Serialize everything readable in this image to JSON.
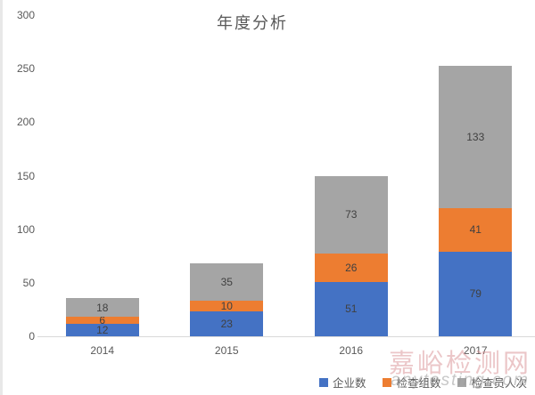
{
  "chart_data": {
    "type": "bar",
    "stacked": true,
    "title": "年度分析",
    "categories": [
      "2014",
      "2015",
      "2016",
      "2017"
    ],
    "series": [
      {
        "name": "企业数",
        "color": "#4472C4",
        "values": [
          12,
          23,
          51,
          79
        ]
      },
      {
        "name": "检查组数",
        "color": "#ED7D31",
        "values": [
          6,
          10,
          26,
          41
        ]
      },
      {
        "name": "检查员人次",
        "color": "#A5A5A5",
        "values": [
          18,
          35,
          73,
          133
        ]
      }
    ],
    "xlabel": "",
    "ylabel": "",
    "ylim": [
      0,
      300
    ],
    "yticks": [
      0,
      50,
      100,
      150,
      200,
      250,
      300
    ],
    "grid": false,
    "legend_position": "bottom-right",
    "totals": [
      36,
      68,
      150,
      253
    ]
  },
  "watermark": {
    "text": "嘉峪检测网",
    "domain": "anytesting.com"
  }
}
